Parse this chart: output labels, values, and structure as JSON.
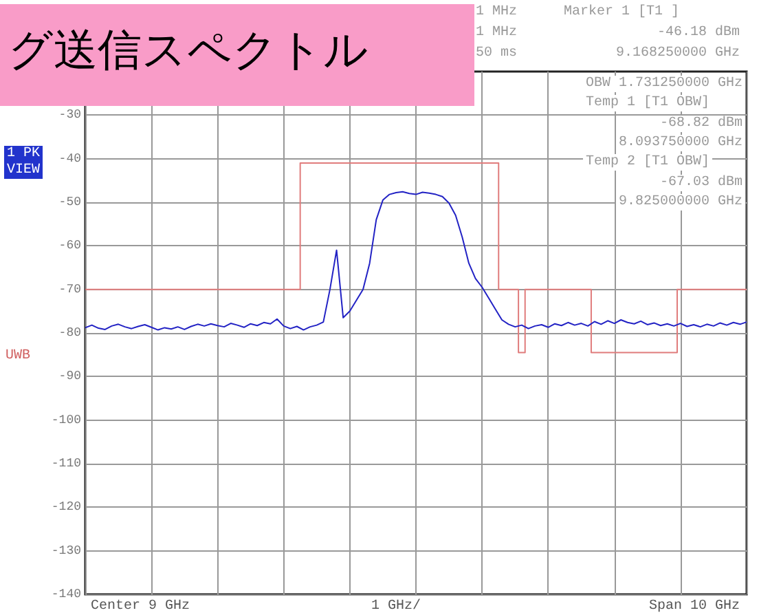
{
  "chart_data": {
    "type": "line",
    "title": "グ送信スペクトル",
    "annotations": [
      "1 MHz",
      "1 MHz",
      "50 ms",
      "Marker 1 [T1 ]",
      "-46.18 dBm",
      "9.168250000 GHz",
      "OBW 1.731250000 GHz",
      "Temp 1 [T1 OBW]",
      "-68.82 dBm",
      "8.093750000 GHz",
      "Temp 2 [T1 OBW]",
      "-67.03 dBm",
      "9.825000000 GHz",
      "1 PK",
      "VIEW",
      "UWB",
      "Center 9 GHz",
      "1 GHz/",
      "Span 10 GHz"
    ],
    "categories": [
      null,
      null,
      null,
      null,
      null,
      null,
      null,
      null,
      null,
      null,
      null,
      null,
      null,
      null,
      null,
      null,
      null,
      null,
      null,
      null,
      null,
      null,
      null,
      null,
      null,
      null,
      null,
      null,
      null,
      null,
      null,
      null,
      null,
      null,
      null,
      null,
      null,
      null,
      null,
      null,
      null,
      null,
      null,
      null,
      null,
      null,
      null,
      null,
      null,
      null,
      null,
      null,
      null,
      null,
      null,
      null,
      null,
      null,
      null,
      null,
      null,
      null,
      null,
      null,
      null,
      null,
      null,
      null,
      null,
      null,
      null,
      null,
      null,
      null,
      null,
      null,
      null,
      null,
      null,
      null,
      null,
      null,
      null,
      null,
      null,
      null,
      null,
      null,
      null,
      null,
      null,
      null,
      null,
      null,
      null,
      null,
      null,
      null,
      null,
      null,
      null
    ],
    "series": [
      {
        "color": "#2222c4",
        "values": [
          -78.8,
          -78.2,
          -78.9,
          -79.2,
          -78.4,
          -78.0,
          -78.6,
          -79.0,
          -78.5,
          -78.1,
          -78.7,
          -79.3,
          -78.8,
          -79.1,
          -78.6,
          -79.2,
          -78.5,
          -78.0,
          -78.4,
          -77.9,
          -78.3,
          -78.6,
          -77.8,
          -78.2,
          -78.7,
          -77.9,
          -78.3,
          -77.6,
          -77.9,
          -76.8,
          -78.4,
          -79.0,
          -78.5,
          -79.3,
          -78.6,
          -78.2,
          -77.5,
          -70,
          -61,
          -76.5,
          -75,
          -72.5,
          -70,
          -64,
          -54,
          -49.5,
          -48.2,
          -47.8,
          -47.6,
          -48.0,
          -48.2,
          -47.7,
          -47.9,
          -48.2,
          -48.7,
          -50.2,
          -53,
          -58,
          -64,
          -67.5,
          -69.5,
          -72,
          -74.5,
          -77,
          -78,
          -78.6,
          -78.2,
          -79.0,
          -78.4,
          -78.1,
          -78.7,
          -77.9,
          -78.3,
          -77.6,
          -78.2,
          -77.8,
          -78.4,
          -77.4,
          -78.0,
          -77.2,
          -77.8,
          -77.0,
          -77.6,
          -77.9,
          -77.3,
          -78.1,
          -77.7,
          -78.3,
          -77.9,
          -78.4,
          -77.8,
          -78.5,
          -78.1,
          -78.6,
          -78.0,
          -78.4,
          -77.7,
          -78.2,
          -77.6,
          -78.0,
          -77.5
        ]
      },
      {
        "type": "step",
        "color": "#e07c7c",
        "values": [
          -70,
          -70,
          -70,
          -70,
          -70,
          -70,
          -70,
          -70,
          -70,
          -70,
          -70,
          -70,
          -70,
          -70,
          -70,
          -70,
          -70,
          -70,
          -70,
          -70,
          -70,
          -70,
          -70,
          -70,
          -70,
          -70,
          -70,
          -70,
          -70,
          -70,
          -70,
          -70,
          -70,
          -41,
          -41,
          -41,
          -41,
          -41,
          -41,
          -41,
          -41,
          -41,
          -41,
          -41,
          -41,
          -41,
          -41,
          -41,
          -41,
          -41,
          -41,
          -41,
          -41,
          -41,
          -41,
          -41,
          -41,
          -41,
          -41,
          -41,
          -41,
          -41,
          -41,
          -70,
          -70,
          -70,
          -84.5,
          -70,
          -70,
          -70,
          -70,
          -70,
          -70,
          -70,
          -70,
          -70,
          -70,
          -84.5,
          -84.5,
          -84.5,
          -84.5,
          -84.5,
          -84.5,
          -84.5,
          -84.5,
          -84.5,
          -84.5,
          -84.5,
          -84.5,
          -84.5,
          -70,
          -70,
          -70,
          -70,
          -70,
          -70,
          -70,
          -70,
          -70,
          -70,
          -70
        ]
      }
    ],
    "ylim": [
      -140,
      -20
    ],
    "yticks": [
      -30,
      -40,
      -50,
      -60,
      -70,
      -80,
      -90,
      -100,
      -110,
      -120,
      -130,
      -140
    ],
    "grid": true,
    "tick_labels": "y",
    "line_style": "solid"
  }
}
